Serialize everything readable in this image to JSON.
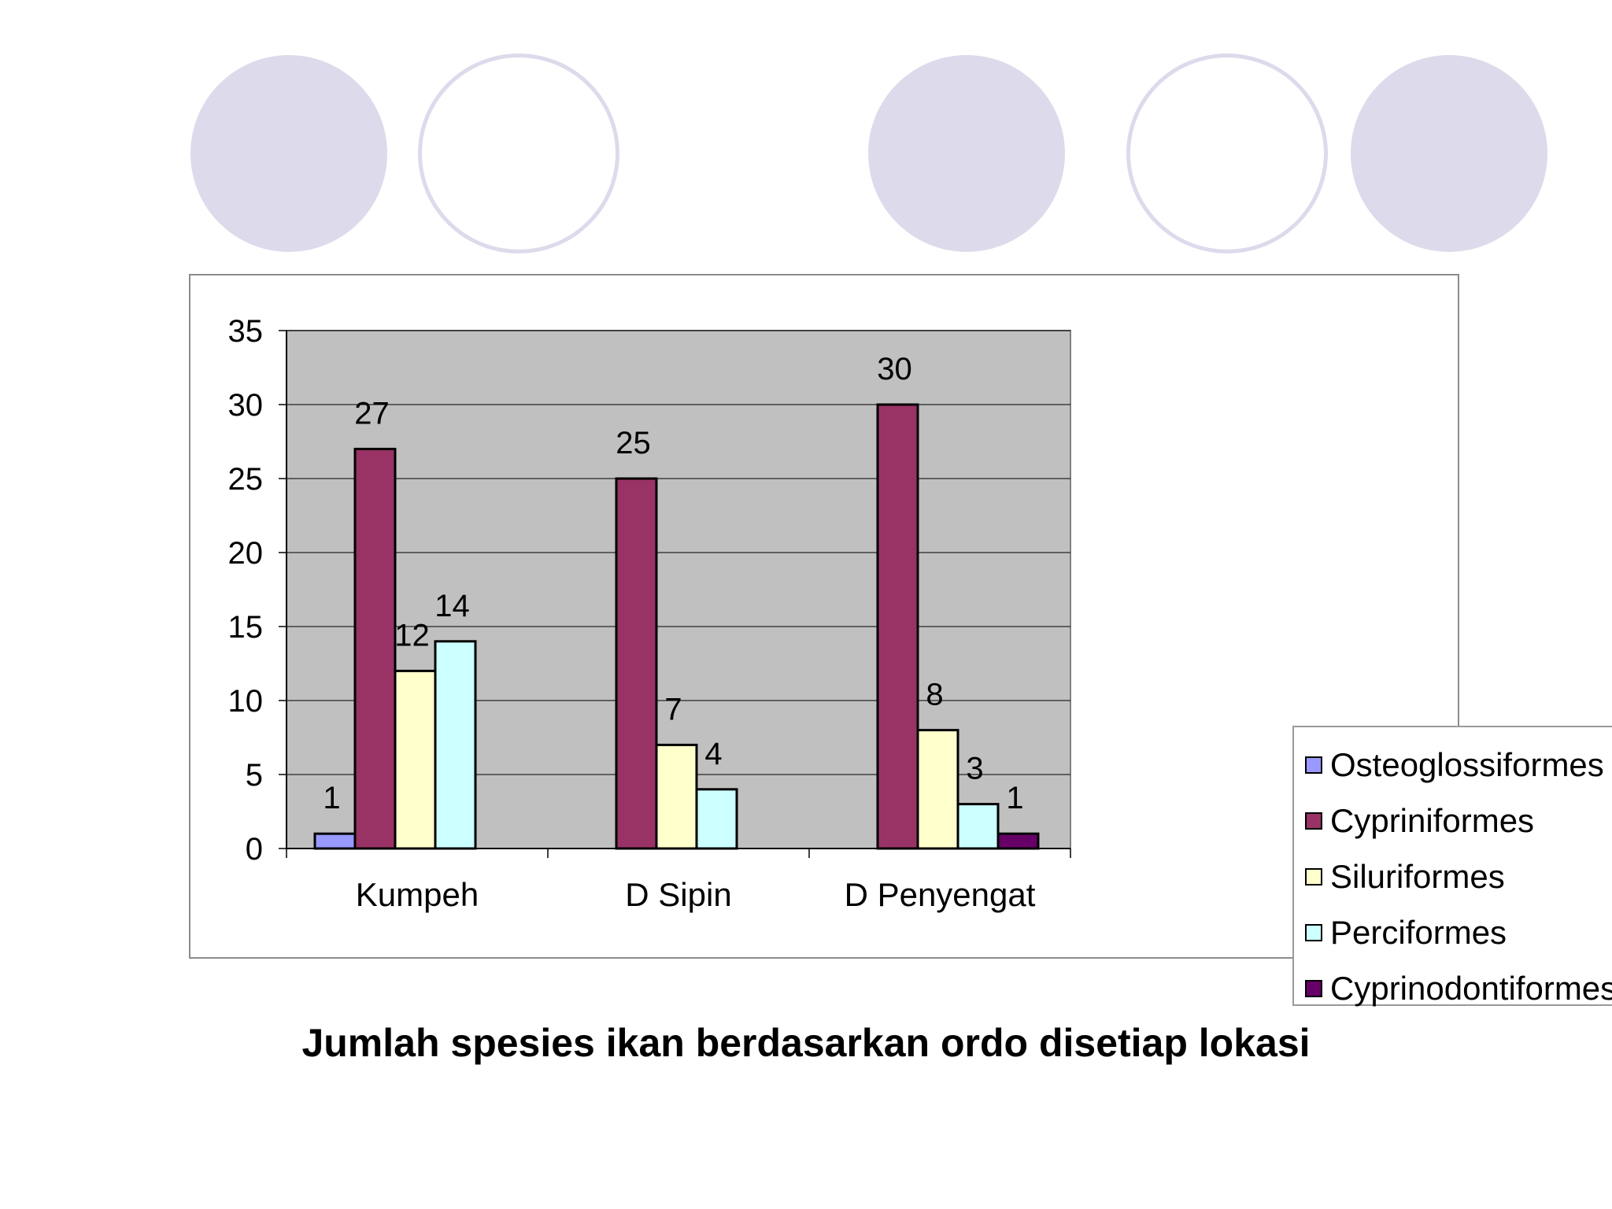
{
  "caption": "Jumlah spesies ikan berdasarkan ordo disetiap lokasi",
  "colors": {
    "plot_background": "#c0c0c0",
    "decor_circle": "#dcdaeb"
  },
  "chart_data": {
    "type": "bar",
    "title": "",
    "xlabel": "",
    "ylabel": "",
    "ylim": [
      0,
      35
    ],
    "yticks": [
      0,
      5,
      10,
      15,
      20,
      25,
      30,
      35
    ],
    "grid": true,
    "legend_position": "right",
    "categories": [
      "Kumpeh",
      "D Sipin",
      "D Penyengat"
    ],
    "series": [
      {
        "name": "Osteoglossiformes",
        "color": "#9999ff",
        "values": [
          1,
          null,
          null
        ]
      },
      {
        "name": "Cypriniformes",
        "color": "#993366",
        "values": [
          27,
          25,
          30
        ]
      },
      {
        "name": "Siluriformes",
        "color": "#ffffcc",
        "values": [
          12,
          7,
          8
        ]
      },
      {
        "name": "Perciformes",
        "color": "#ccffff",
        "values": [
          14,
          4,
          3
        ]
      },
      {
        "name": "Cyprinodontiformes",
        "color": "#660066",
        "values": [
          null,
          null,
          1
        ]
      }
    ]
  }
}
